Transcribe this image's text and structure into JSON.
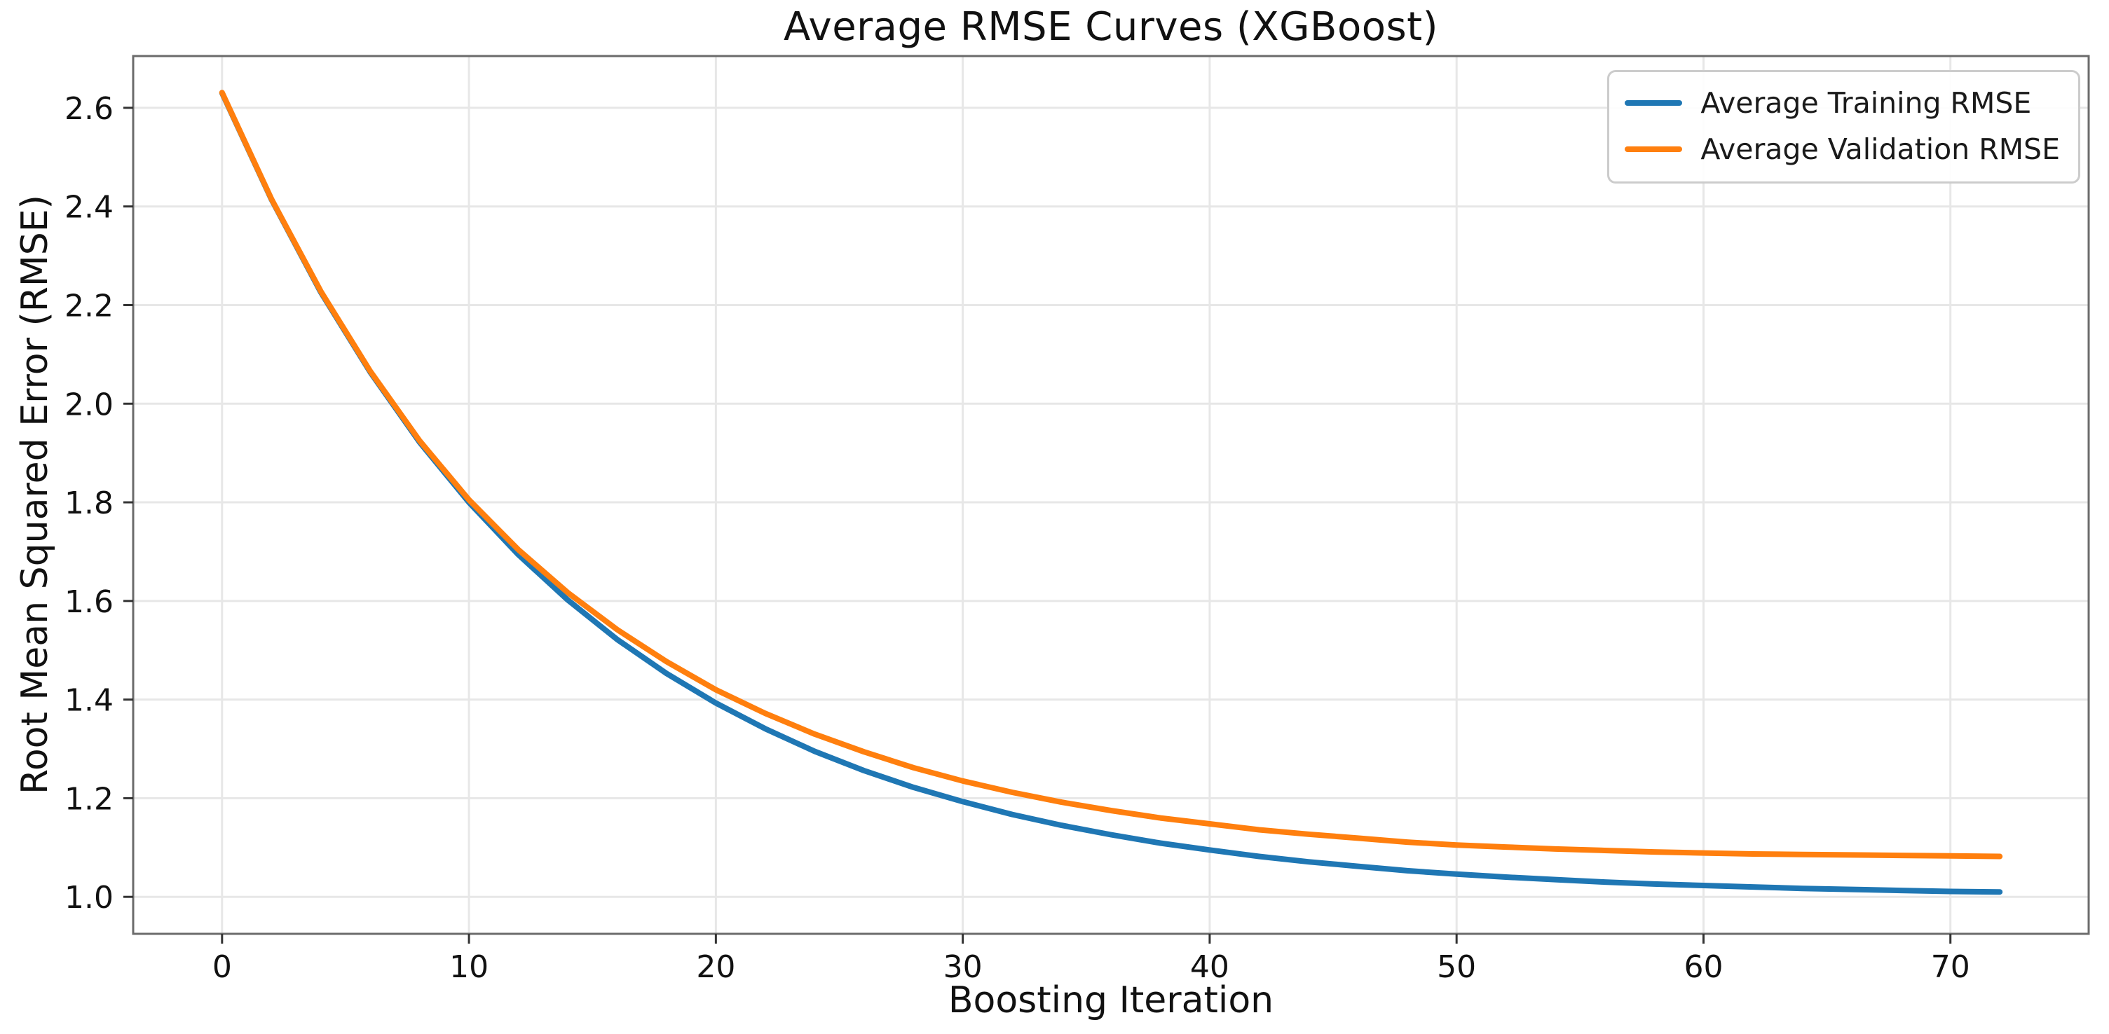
{
  "chart_data": {
    "type": "line",
    "title": "Average RMSE Curves (XGBoost)",
    "xlabel": "Boosting Iteration",
    "ylabel": "Root Mean Squared Error (RMSE)",
    "xlim": [
      -3.6,
      75.6
    ],
    "ylim": [
      0.925,
      2.705
    ],
    "xticks": [
      0,
      10,
      20,
      30,
      40,
      50,
      60,
      70
    ],
    "yticks": [
      1.0,
      1.2,
      1.4,
      1.6,
      1.8,
      2.0,
      2.2,
      2.4,
      2.6
    ],
    "grid": true,
    "legend_position": "upper right",
    "x": [
      0,
      2,
      4,
      6,
      8,
      10,
      12,
      14,
      16,
      18,
      20,
      22,
      24,
      26,
      28,
      30,
      32,
      34,
      36,
      38,
      40,
      42,
      44,
      46,
      48,
      50,
      52,
      54,
      56,
      58,
      60,
      62,
      64,
      66,
      68,
      70,
      72
    ],
    "series": [
      {
        "name": "Average Training RMSE",
        "color": "#1f77b4",
        "values": [
          2.63,
          2.414,
          2.226,
          2.064,
          1.922,
          1.8,
          1.694,
          1.602,
          1.522,
          1.453,
          1.393,
          1.341,
          1.295,
          1.256,
          1.222,
          1.193,
          1.167,
          1.145,
          1.126,
          1.109,
          1.095,
          1.082,
          1.071,
          1.062,
          1.053,
          1.046,
          1.04,
          1.035,
          1.03,
          1.026,
          1.023,
          1.02,
          1.017,
          1.015,
          1.013,
          1.011,
          1.01
        ]
      },
      {
        "name": "Average Validation RMSE",
        "color": "#ff7f0e",
        "values": [
          2.631,
          2.415,
          2.228,
          2.066,
          1.925,
          1.805,
          1.704,
          1.617,
          1.542,
          1.477,
          1.42,
          1.372,
          1.33,
          1.294,
          1.262,
          1.235,
          1.212,
          1.192,
          1.175,
          1.16,
          1.148,
          1.136,
          1.127,
          1.119,
          1.111,
          1.105,
          1.101,
          1.097,
          1.094,
          1.091,
          1.089,
          1.087,
          1.086,
          1.085,
          1.084,
          1.083,
          1.082
        ]
      }
    ],
    "style": {
      "grid_color": "#e7e7e7",
      "spine_color": "#6b6b6b",
      "tick_color": "#333333",
      "tick_label_color": "#111111",
      "line_width": 8
    }
  }
}
